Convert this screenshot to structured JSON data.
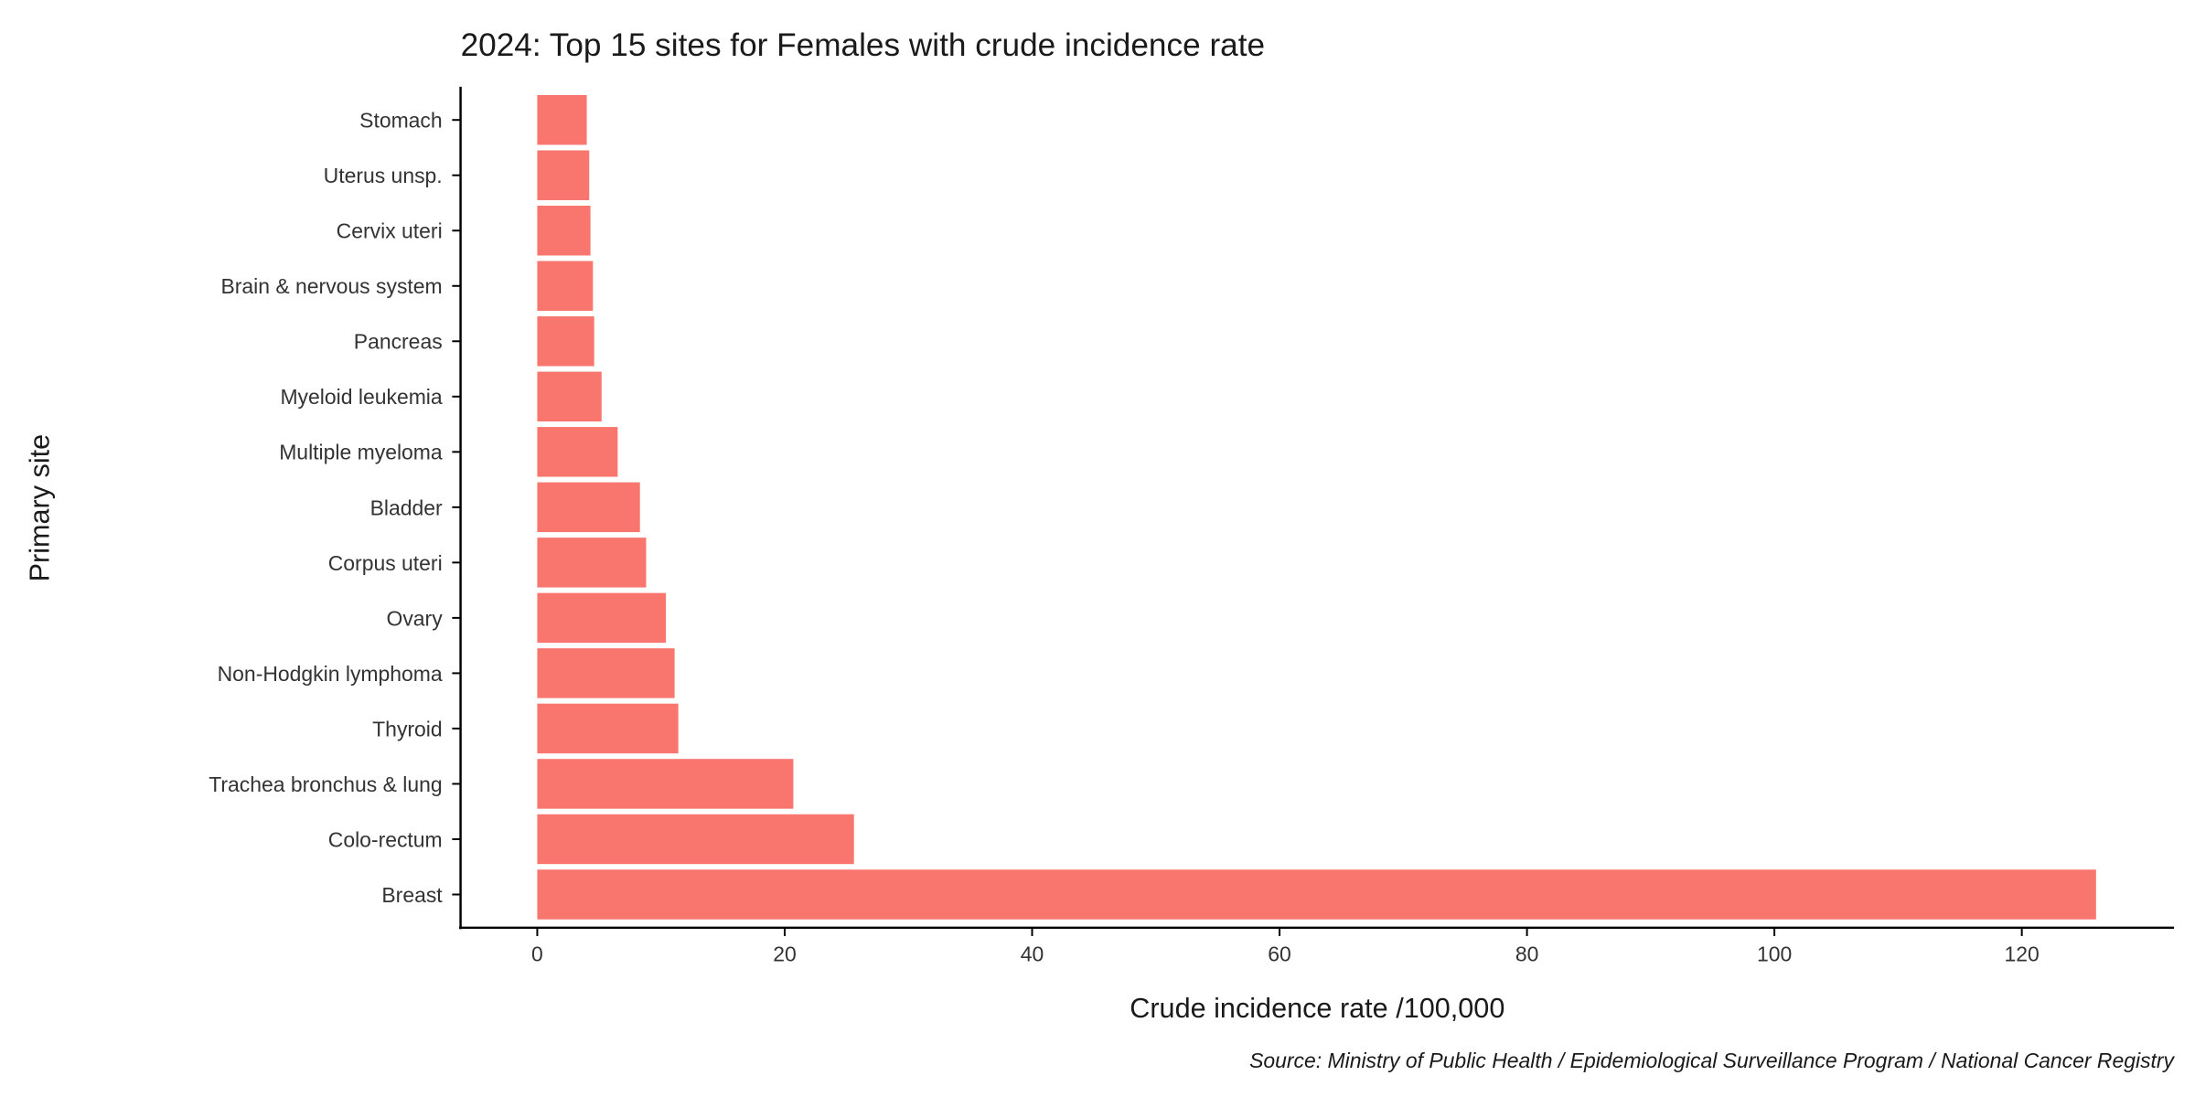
{
  "chart_data": {
    "type": "bar",
    "orientation": "horizontal",
    "title": "2024: Top 15 sites for Females with crude incidence rate",
    "x_label": "Crude incidence rate /100,000",
    "y_label": "Primary site",
    "caption": "Source: Ministry of Public Health / Epidemiological Surveillance Program / National Cancer Registry",
    "categories": [
      "Stomach",
      "Uterus unsp.",
      "Cervix uteri",
      "Brain & nervous system",
      "Pancreas",
      "Myeloid leukemia",
      "Multiple myeloma",
      "Bladder",
      "Corpus uteri",
      "Ovary",
      "Non-Hodgkin lymphoma",
      "Thyroid",
      "Trachea bronchus & lung",
      "Colo-rectum",
      "Breast"
    ],
    "values": [
      4.0,
      4.2,
      4.3,
      4.5,
      4.6,
      5.2,
      6.5,
      8.3,
      8.8,
      10.4,
      11.1,
      11.4,
      20.7,
      25.6,
      126.0
    ],
    "color": "#f8766d",
    "xlim": [
      -6.2,
      132.3
    ],
    "xticks": [
      0,
      20,
      40,
      60,
      80,
      100,
      120
    ],
    "grid": false
  }
}
